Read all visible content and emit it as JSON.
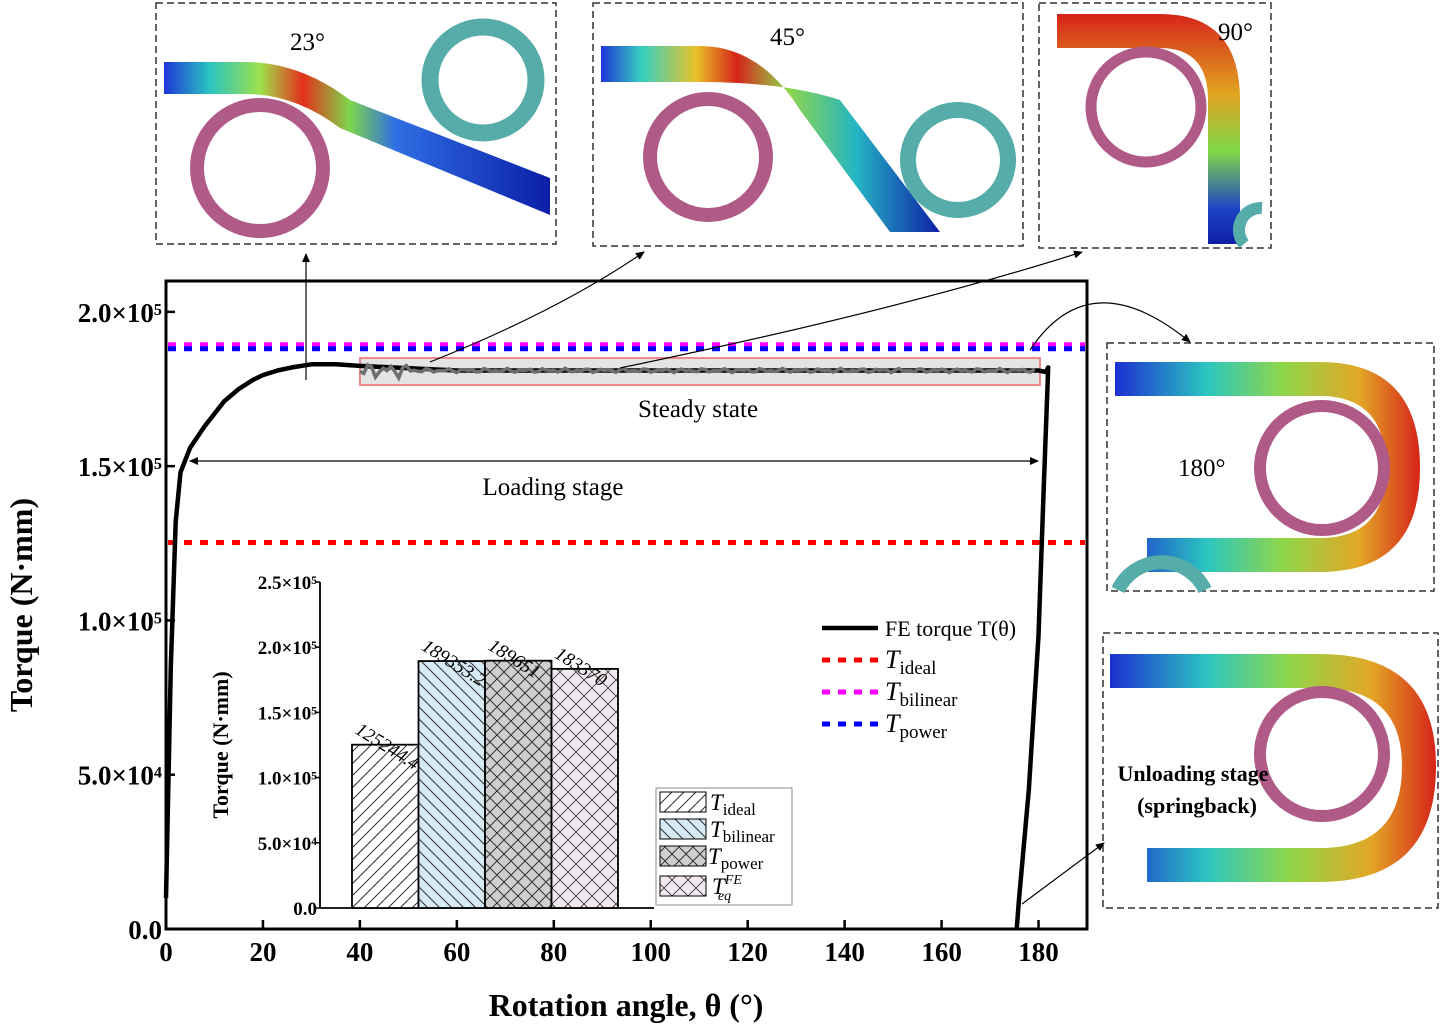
{
  "chart_data": [
    {
      "type": "line",
      "xlabel": "Rotation angle, θ (°)",
      "ylabel": "Torque (N·mm)",
      "xlim": [
        0,
        190
      ],
      "ylim": [
        0,
        210000
      ],
      "xticks": [
        "0",
        "20",
        "40",
        "60",
        "80",
        "100",
        "120",
        "140",
        "160",
        "180"
      ],
      "yticks": [
        "0.0",
        "5.0×10⁴",
        "1.0×10⁵",
        "1.5×10⁵",
        "2.0×10⁵"
      ],
      "series": [
        {
          "name": "FE torque T(θ)",
          "x": [
            0,
            1,
            2,
            3,
            5,
            8,
            10,
            12,
            15,
            18,
            20,
            23,
            26,
            30,
            35,
            40,
            60,
            80,
            100,
            120,
            140,
            160,
            175,
            180,
            181.5,
            182,
            181,
            180,
            178,
            176,
            175.5
          ],
          "y": [
            10000,
            85000,
            132000,
            148000,
            156000,
            163000,
            167000,
            171000,
            175000,
            178000,
            179500,
            181000,
            182000,
            183000,
            183000,
            182500,
            181000,
            181000,
            181000,
            181000,
            181000,
            181000,
            181000,
            181000,
            180500,
            182000,
            140000,
            95000,
            45000,
            10000,
            0
          ]
        },
        {
          "name": "T_ideal",
          "value": 125244.4,
          "color": "#ff0000"
        },
        {
          "name": "T_bilinear",
          "value": 189353.2,
          "color": "#ff00ff"
        },
        {
          "name": "T_power",
          "value": 189651,
          "color": "#0000ff"
        }
      ],
      "annotations": {
        "steady": "Steady state",
        "loading": "Loading stage",
        "unloading_1": "Unloading stage",
        "unloading_2": "(springback)"
      },
      "legend": {
        "fe": "FE torque T(θ)",
        "ideal": "T",
        "ideal_sub": "ideal",
        "bilinear": "T",
        "bilinear_sub": "bilinear",
        "power": "T",
        "power_sub": "power"
      },
      "legend_position": "right",
      "grid": false
    },
    {
      "type": "bar",
      "ylabel": "Torque (N·mm)",
      "ylim": [
        0,
        250000
      ],
      "yticks": [
        "0.0",
        "5.0×10⁴",
        "1.0×10⁵",
        "1.5×10⁵",
        "2.0×10⁵",
        "2.5×10⁵"
      ],
      "categories": [
        "T_ideal",
        "T_bilinear",
        "T_power",
        "T_eq^FE"
      ],
      "values": [
        125244.4,
        189353.2,
        189651,
        183370
      ],
      "value_labels": [
        "125244.4",
        "189353.2",
        "189651",
        "183370"
      ],
      "legend": [
        {
          "main": "T",
          "sub": "ideal"
        },
        {
          "main": "T",
          "sub": "bilinear"
        },
        {
          "main": "T",
          "sub": "power"
        },
        {
          "main": "T",
          "sub": "eq",
          "sup": "FE"
        }
      ]
    }
  ],
  "insets": {
    "angle_1": "23°",
    "angle_2": "45°",
    "angle_3": "90°",
    "angle_4": "180°"
  },
  "colors": {
    "pink_ring": "#b05a88",
    "teal_ring": "#56aca9",
    "fe_curve": "#000000",
    "steady_box": "#f08a8a"
  }
}
